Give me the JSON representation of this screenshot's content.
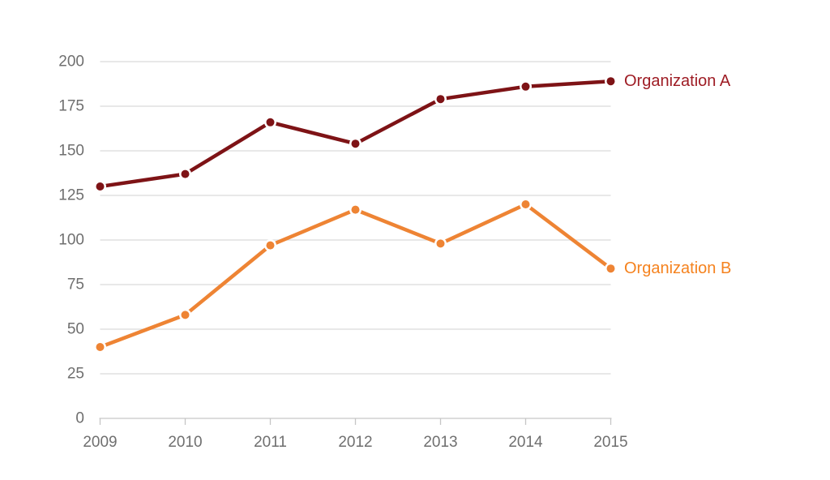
{
  "chart_data": {
    "type": "line",
    "x": [
      "2009",
      "2010",
      "2011",
      "2012",
      "2013",
      "2014",
      "2015"
    ],
    "series": [
      {
        "name": "Organization A",
        "values": [
          130,
          137,
          166,
          154,
          179,
          186,
          189
        ],
        "line_color": "#7E1316",
        "marker_color": "#7E1316",
        "label_color": "#9E1C24"
      },
      {
        "name": "Organization B",
        "values": [
          40,
          58,
          97,
          117,
          98,
          120,
          84
        ],
        "line_color": "#EE8434",
        "marker_color": "#EE8434",
        "label_color": "#F5821E"
      }
    ],
    "title": "",
    "xlabel": "",
    "ylabel": "",
    "y_axis": {
      "min": 0,
      "max": 200,
      "step": 25,
      "tick_labels": [
        "0",
        "25",
        "50",
        "75",
        "100",
        "125",
        "150",
        "175",
        "200"
      ]
    },
    "grid": true,
    "legend_position": "end-of-line",
    "colors": {
      "axis_text": "#6F6F6F",
      "gridline": "#D9D9D9",
      "axis_line": "#C6C6C6",
      "background": "#FFFFFF"
    }
  }
}
